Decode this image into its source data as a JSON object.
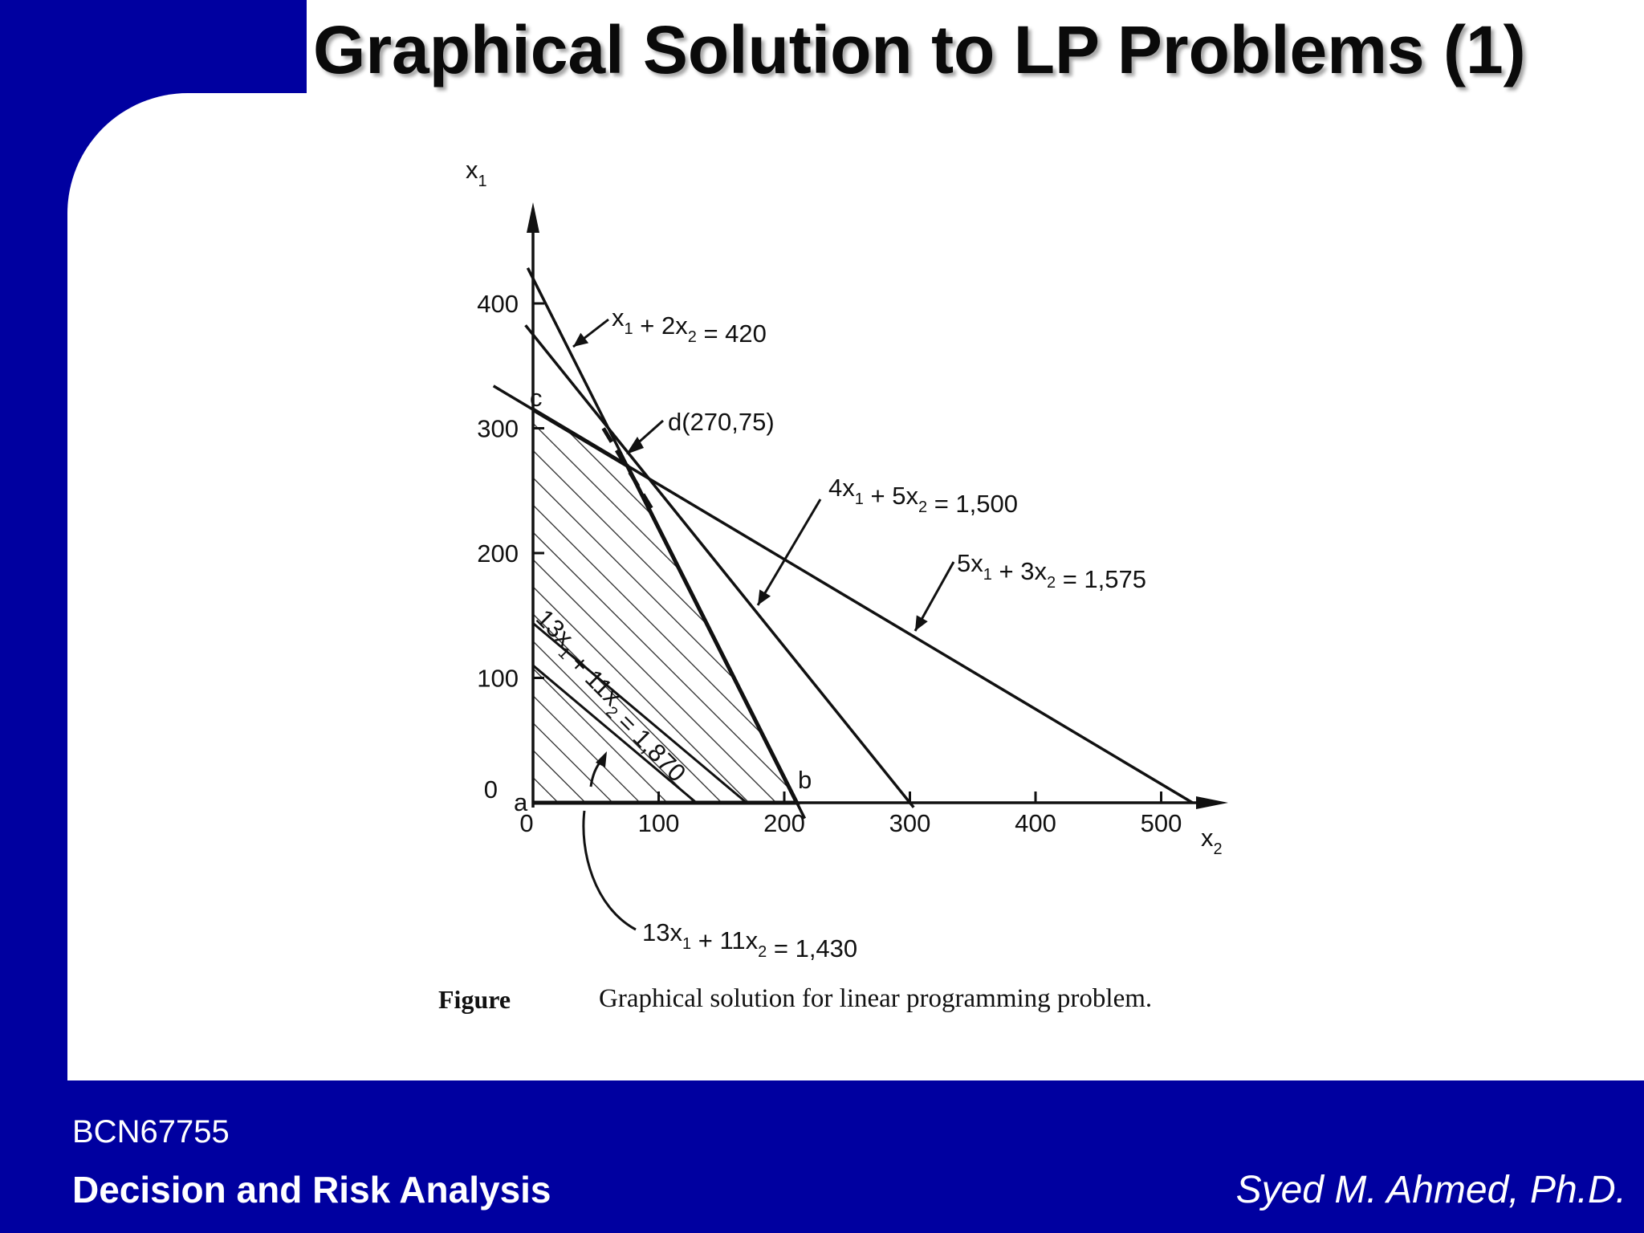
{
  "slide": {
    "title": "Graphical Solution to LP Problems (1)",
    "footer_code": "BCN67755",
    "footer_course": "Decision and Risk Analysis",
    "footer_author": "Syed M. Ahmed, Ph.D.",
    "colors": {
      "background": "#0000a0",
      "panel": "#ffffff"
    }
  },
  "chart_data": {
    "type": "line",
    "caption": {
      "prefix": "Figure",
      "text": "Graphical solution for linear programming problem."
    },
    "xlabel": "x2",
    "ylabel": "x1",
    "xlim": [
      0,
      520
    ],
    "ylim": [
      0,
      420
    ],
    "x_ticks": [
      "0",
      "100",
      "200",
      "300",
      "400",
      "500"
    ],
    "y_ticks": [
      "0",
      "100",
      "200",
      "300",
      "400"
    ],
    "constraints": [
      {
        "label": "x1 + 2x2 = 420",
        "x_intercept": 210,
        "y_intercept": 420
      },
      {
        "label": "4x1 + 5x2 = 1,500",
        "x_intercept": 300,
        "y_intercept": 375
      },
      {
        "label": "5x1 + 3x2 = 1,575",
        "x_intercept": 525,
        "y_intercept": 315
      }
    ],
    "objective_lines": [
      {
        "label": "13x1 + 11x2 = 1,870",
        "x_intercept": 170,
        "y_intercept": 143.8
      },
      {
        "label": "13x1 + 11x2 = 1,430",
        "x_intercept": 130,
        "y_intercept": 110
      }
    ],
    "points": [
      {
        "label": "a",
        "x": 0,
        "y": 0
      },
      {
        "label": "b",
        "x": 210,
        "y": 0
      },
      {
        "label": "c",
        "x": 0,
        "y": 315
      },
      {
        "label": "d(270,75)",
        "x": 75,
        "y": 270
      }
    ],
    "feasible_region": [
      [
        0,
        0
      ],
      [
        210,
        0
      ],
      [
        75,
        270
      ],
      [
        0,
        315
      ]
    ],
    "colors": {
      "lines": "#111111"
    }
  }
}
